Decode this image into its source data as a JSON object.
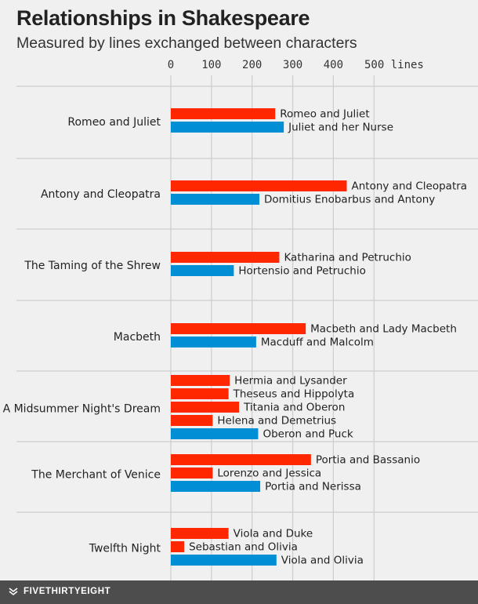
{
  "title": "Relationships in Shakespeare",
  "subtitle": "Measured by lines exchanged between characters",
  "brand": "FIVETHIRTYEIGHT",
  "colors": {
    "red": "#ff2700",
    "blue": "#008fd5",
    "grid": "#cdcdcd",
    "background": "#f0f0f0"
  },
  "chart_data": {
    "type": "bar",
    "orientation": "horizontal",
    "xlim": [
      0,
      500
    ],
    "xticks": [
      0,
      100,
      200,
      300,
      400,
      500
    ],
    "xtick_labels": [
      "0",
      "100",
      "200",
      "300",
      "400",
      "500 lines"
    ],
    "groups": [
      {
        "play": "Romeo and Juliet",
        "bars": [
          {
            "label": "Romeo and Juliet",
            "value": 257,
            "color": "red"
          },
          {
            "label": "Juliet and her Nurse",
            "value": 278,
            "color": "blue"
          }
        ]
      },
      {
        "play": "Antony and Cleopatra",
        "bars": [
          {
            "label": "Antony and Cleopatra",
            "value": 433,
            "color": "red"
          },
          {
            "label": "Domitius Enobarbus and Antony",
            "value": 218,
            "color": "blue"
          }
        ]
      },
      {
        "play": "The Taming of the Shrew",
        "bars": [
          {
            "label": "Katharina and Petruchio",
            "value": 267,
            "color": "red"
          },
          {
            "label": "Hortensio and Petruchio",
            "value": 155,
            "color": "blue"
          }
        ]
      },
      {
        "play": "Macbeth",
        "bars": [
          {
            "label": "Macbeth and Lady Macbeth",
            "value": 332,
            "color": "red"
          },
          {
            "label": "Macduff and Malcolm",
            "value": 210,
            "color": "blue"
          }
        ]
      },
      {
        "play": "A Midsummer Night's Dream",
        "bars": [
          {
            "label": "Hermia and Lysander",
            "value": 145,
            "color": "red"
          },
          {
            "label": "Theseus and Hippolyta",
            "value": 142,
            "color": "red"
          },
          {
            "label": "Titania and Oberon",
            "value": 168,
            "color": "red"
          },
          {
            "label": "Helena and Demetrius",
            "value": 103,
            "color": "red"
          },
          {
            "label": "Oberon and Puck",
            "value": 215,
            "color": "blue"
          }
        ]
      },
      {
        "play": "The Merchant of Venice",
        "bars": [
          {
            "label": "Portia and Bassanio",
            "value": 345,
            "color": "red"
          },
          {
            "label": "Lorenzo and Jessica",
            "value": 103,
            "color": "red"
          },
          {
            "label": "Portia and Nerissa",
            "value": 220,
            "color": "blue"
          }
        ]
      },
      {
        "play": "Twelfth Night",
        "bars": [
          {
            "label": "Viola and Duke",
            "value": 142,
            "color": "red"
          },
          {
            "label": "Sebastian and Olivia",
            "value": 33,
            "color": "red"
          },
          {
            "label": "Viola and Olivia",
            "value": 260,
            "color": "blue"
          }
        ]
      }
    ]
  }
}
